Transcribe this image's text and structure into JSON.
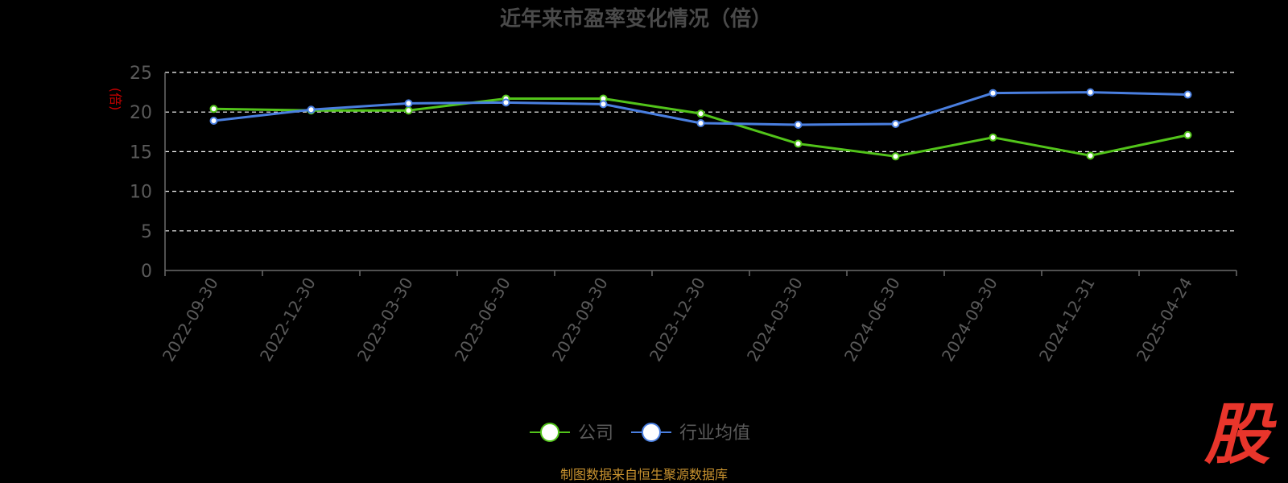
{
  "chart_data": {
    "type": "line",
    "title": "近年来市盈率变化情况（倍）",
    "ylabel": "(倍)",
    "xlabel": "",
    "categories": [
      "2022-09-30",
      "2022-12-30",
      "2023-03-30",
      "2023-06-30",
      "2023-09-30",
      "2023-12-30",
      "2024-03-30",
      "2024-06-30",
      "2024-09-30",
      "2024-12-31",
      "2025-04-24"
    ],
    "ylim": [
      0,
      25
    ],
    "yticks": [
      0,
      5,
      10,
      15,
      20,
      25
    ],
    "grid": true,
    "legend_position": "bottom",
    "series": [
      {
        "name": "公司",
        "color": "#52c41a",
        "values": [
          20.4,
          20.2,
          20.2,
          21.7,
          21.7,
          19.8,
          16.0,
          14.4,
          16.8,
          14.5,
          17.1
        ]
      },
      {
        "name": "行业均值",
        "color": "#4a7fe0",
        "values": [
          18.9,
          20.3,
          21.1,
          21.2,
          21.0,
          18.6,
          18.4,
          18.5,
          22.4,
          22.5,
          22.2
        ]
      }
    ]
  },
  "colors": {
    "title": "#4a4a4a",
    "axis_text": "#5a5a5a",
    "ylabel": "#cc0000",
    "grid": "#ffffff",
    "axis_line": "#6a6a6a"
  },
  "footer": {
    "source": "制图数据来自恒生聚源数据库",
    "logo": "股"
  }
}
